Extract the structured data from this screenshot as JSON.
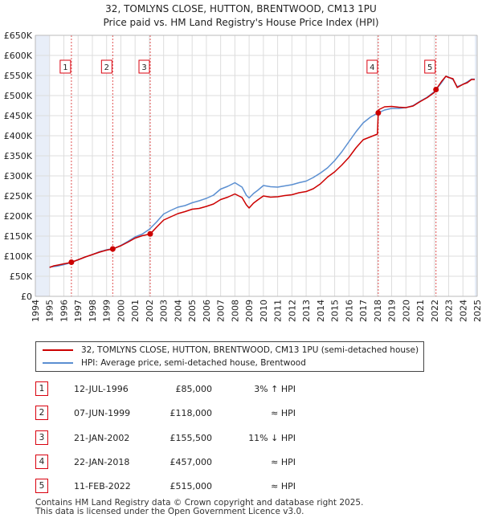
{
  "title_line1": "32, TOMLYNS CLOSE, HUTTON, BRENTWOOD, CM13 1PU",
  "title_line2": "Price paid vs. HM Land Registry's House Price Index (HPI)",
  "colors": {
    "property": "#cc0000",
    "hpi": "#5b8fd1",
    "marker_border": "#d9000e",
    "shade": "#e8eef8",
    "grid": "#dddddd"
  },
  "chart_data": {
    "type": "line",
    "xlim": [
      1994.0,
      2025.0
    ],
    "ylim": [
      0,
      650000
    ],
    "x_ticks": [
      1994,
      1995,
      1996,
      1997,
      1998,
      1999,
      2000,
      2001,
      2002,
      2003,
      2004,
      2005,
      2006,
      2007,
      2008,
      2009,
      2010,
      2011,
      2012,
      2013,
      2014,
      2015,
      2016,
      2017,
      2018,
      2019,
      2020,
      2021,
      2022,
      2023,
      2024,
      2025
    ],
    "y_ticks": [
      0,
      50000,
      100000,
      150000,
      200000,
      250000,
      300000,
      350000,
      400000,
      450000,
      500000,
      550000,
      600000,
      650000
    ],
    "y_tick_labels": [
      "£0",
      "£50K",
      "£100K",
      "£150K",
      "£200K",
      "£250K",
      "£300K",
      "£350K",
      "£400K",
      "£450K",
      "£500K",
      "£550K",
      "£600K",
      "£650K"
    ],
    "shaded_regions": [
      [
        1994.0,
        1995.0
      ],
      [
        2024.83,
        2025.0
      ]
    ],
    "series": [
      {
        "name": "32, TOMLYNS CLOSE, HUTTON, BRENTWOOD, CM13 1PU (semi-detached house)",
        "color": "#cc0000",
        "x": [
          1995.0,
          1995.3,
          1995.6,
          1996.0,
          1996.3,
          1996.53,
          1997.0,
          1997.5,
          1998.0,
          1998.5,
          1999.0,
          1999.43,
          2000.0,
          2000.5,
          2001.0,
          2001.5,
          2002.06,
          2002.5,
          2003.0,
          2003.5,
          2004.0,
          2004.5,
          2005.0,
          2005.5,
          2006.0,
          2006.5,
          2007.0,
          2007.5,
          2008.0,
          2008.5,
          2008.8,
          2009.0,
          2009.3,
          2009.6,
          2010.0,
          2010.5,
          2011.0,
          2011.5,
          2012.0,
          2012.5,
          2013.0,
          2013.5,
          2014.0,
          2014.5,
          2015.0,
          2015.5,
          2016.0,
          2016.5,
          2017.0,
          2017.5,
          2018.0,
          2018.06,
          2018.1,
          2018.5,
          2019.0,
          2019.5,
          2020.0,
          2020.5,
          2021.0,
          2021.5,
          2022.0,
          2022.11,
          2022.5,
          2022.8,
          2023.0,
          2023.3,
          2023.6,
          2024.0,
          2024.3,
          2024.6,
          2024.83
        ],
        "values": [
          72000,
          76000,
          78000,
          81000,
          83000,
          85000,
          91000,
          98000,
          104000,
          110000,
          115000,
          118000,
          126000,
          135000,
          145000,
          151000,
          155500,
          172000,
          190000,
          198000,
          206000,
          211000,
          217000,
          219000,
          224000,
          230000,
          241000,
          247000,
          255000,
          246000,
          228000,
          220000,
          232000,
          240000,
          250000,
          247000,
          248000,
          251000,
          253000,
          258000,
          261000,
          268000,
          280000,
          297000,
          310000,
          327000,
          346000,
          370000,
          390000,
          397000,
          404000,
          457000,
          465000,
          472000,
          473000,
          471000,
          470000,
          474000,
          485000,
          495000,
          508000,
          515000,
          535000,
          548000,
          545000,
          542000,
          520000,
          528000,
          532000,
          540000,
          540000
        ]
      },
      {
        "name": "HPI: Average price, semi-detached house, Brentwood",
        "color": "#5b8fd1",
        "x": [
          1995.0,
          1995.5,
          1996.0,
          1996.5,
          1997.0,
          1997.5,
          1998.0,
          1998.5,
          1999.0,
          1999.5,
          2000.0,
          2000.5,
          2001.0,
          2001.5,
          2002.0,
          2002.5,
          2003.0,
          2003.5,
          2004.0,
          2004.5,
          2005.0,
          2005.5,
          2006.0,
          2006.5,
          2007.0,
          2007.5,
          2008.0,
          2008.5,
          2008.8,
          2009.0,
          2009.3,
          2009.6,
          2010.0,
          2010.5,
          2011.0,
          2011.5,
          2012.0,
          2012.5,
          2013.0,
          2013.5,
          2014.0,
          2014.5,
          2015.0,
          2015.5,
          2016.0,
          2016.5,
          2017.0,
          2017.5,
          2018.0,
          2018.5,
          2019.0,
          2019.5,
          2020.0,
          2020.5,
          2021.0,
          2021.5,
          2022.0,
          2022.5,
          2022.8,
          2023.0,
          2023.3,
          2023.6,
          2024.0,
          2024.3,
          2024.6,
          2024.83
        ],
        "values": [
          73000,
          75000,
          79000,
          84000,
          91000,
          98000,
          104000,
          111000,
          116000,
          119000,
          127000,
          137000,
          148000,
          155000,
          167000,
          185000,
          205000,
          214000,
          222000,
          226000,
          233000,
          238000,
          244000,
          252000,
          267000,
          274000,
          283000,
          272000,
          252000,
          245000,
          256000,
          264000,
          276000,
          273000,
          272000,
          275000,
          278000,
          283000,
          287000,
          296000,
          307000,
          320000,
          338000,
          360000,
          385000,
          410000,
          432000,
          446000,
          456000,
          464000,
          468000,
          468000,
          470000,
          475000,
          486000,
          496000,
          510000,
          532000,
          548000,
          546000,
          540000,
          522000,
          528000,
          534000,
          541000,
          541000
        ]
      }
    ],
    "sales": [
      {
        "n": "1",
        "x": 1996.53,
        "value": 85000
      },
      {
        "n": "2",
        "x": 1999.43,
        "value": 118000
      },
      {
        "n": "3",
        "x": 2002.06,
        "value": 155500
      },
      {
        "n": "4",
        "x": 2018.06,
        "value": 457000
      },
      {
        "n": "5",
        "x": 2022.11,
        "value": 515000
      }
    ]
  },
  "legend": {
    "property_label": "32, TOMLYNS CLOSE, HUTTON, BRENTWOOD, CM13 1PU (semi-detached house)",
    "hpi_label": "HPI: Average price, semi-detached house, Brentwood"
  },
  "transactions": [
    {
      "n": "1",
      "date": "12-JUL-1996",
      "price": "£85,000",
      "hpi": "3% ↑ HPI"
    },
    {
      "n": "2",
      "date": "07-JUN-1999",
      "price": "£118,000",
      "hpi": "≈ HPI"
    },
    {
      "n": "3",
      "date": "21-JAN-2002",
      "price": "£155,500",
      "hpi": "11% ↓ HPI"
    },
    {
      "n": "4",
      "date": "22-JAN-2018",
      "price": "£457,000",
      "hpi": "≈ HPI"
    },
    {
      "n": "5",
      "date": "11-FEB-2022",
      "price": "£515,000",
      "hpi": "≈ HPI"
    }
  ],
  "footer": {
    "line1": "Contains HM Land Registry data © Crown copyright and database right 2025.",
    "line2": "This data is licensed under the Open Government Licence v3.0."
  }
}
